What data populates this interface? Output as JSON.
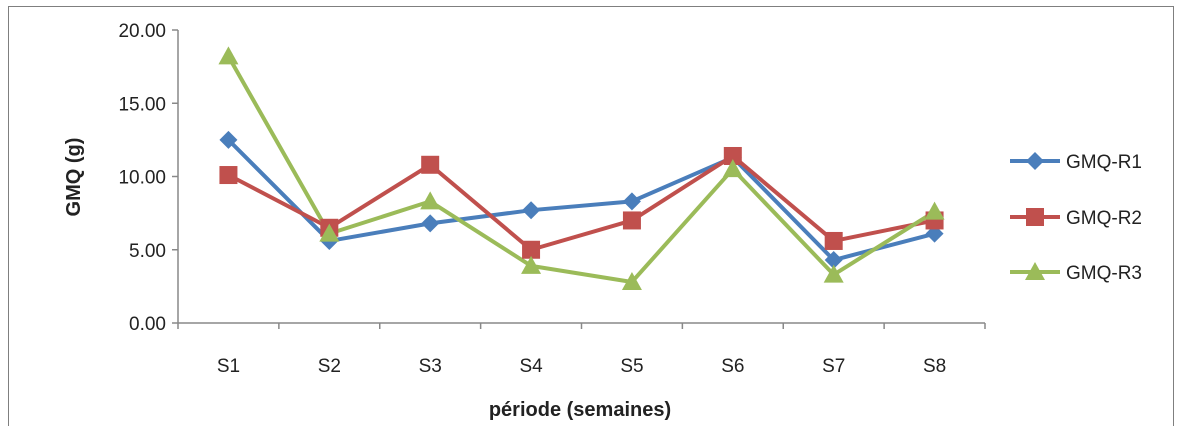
{
  "chart_data": {
    "type": "line",
    "title": "",
    "xlabel": "période (semaines)",
    "ylabel": "GMQ (g)",
    "categories": [
      "S1",
      "S2",
      "S3",
      "S4",
      "S5",
      "S6",
      "S7",
      "S8"
    ],
    "ylim": [
      0,
      20
    ],
    "yticks": [
      "0.00",
      "5.00",
      "10.00",
      "15.00",
      "20.00"
    ],
    "legend_position": "right",
    "grid": false,
    "series": [
      {
        "name": "GMQ-R1",
        "color": "#4a7ebb",
        "marker": "diamond",
        "values": [
          12.5,
          5.6,
          6.8,
          7.7,
          8.3,
          11.3,
          4.3,
          6.1
        ]
      },
      {
        "name": "GMQ-R2",
        "color": "#c0504d",
        "marker": "square",
        "values": [
          10.1,
          6.5,
          10.8,
          5.0,
          7.0,
          11.4,
          5.6,
          7.0
        ]
      },
      {
        "name": "GMQ-R3",
        "color": "#9bbb59",
        "marker": "triangle",
        "values": [
          18.2,
          6.1,
          8.3,
          3.9,
          2.8,
          10.5,
          3.3,
          7.6
        ]
      }
    ]
  }
}
